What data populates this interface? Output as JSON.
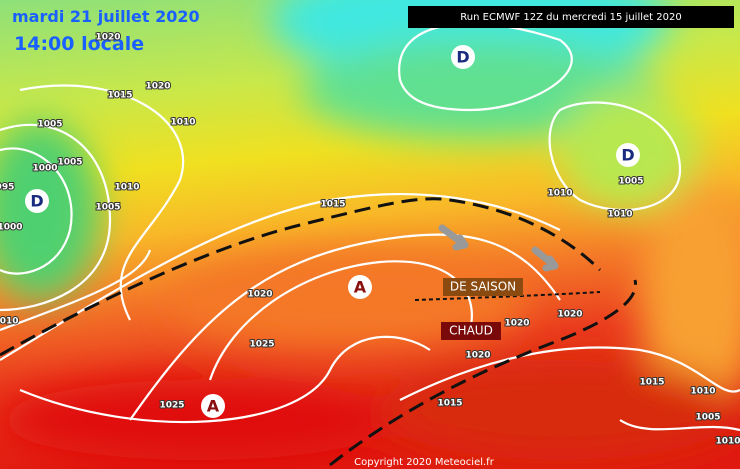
{
  "header": {
    "date": "mardi 21 juillet 2020",
    "time": "14:00 locale",
    "run": "Run ECMWF 12Z du mercredi 15 juillet 2020"
  },
  "pressure_centers": [
    {
      "label": "D"
    },
    {
      "label": "D"
    },
    {
      "label": "D"
    },
    {
      "label": "A"
    },
    {
      "label": "A"
    }
  ],
  "annotations": [
    {
      "text": "DE SAISON"
    },
    {
      "text": "CHAUD"
    }
  ],
  "isobar_labels": [
    "1020",
    "1020",
    "1015",
    "1010",
    "1005",
    "1005",
    "1000",
    "995",
    "1010",
    "1005",
    "1000",
    "1015",
    "1010",
    "1005",
    "1010",
    "1020",
    "1025",
    "1010",
    "1020",
    "1020",
    "1020",
    "1025",
    "1015",
    "1015",
    "1010",
    "1005",
    "1010"
  ],
  "copyright": "Copyright 2020 Meteociel.fr"
}
